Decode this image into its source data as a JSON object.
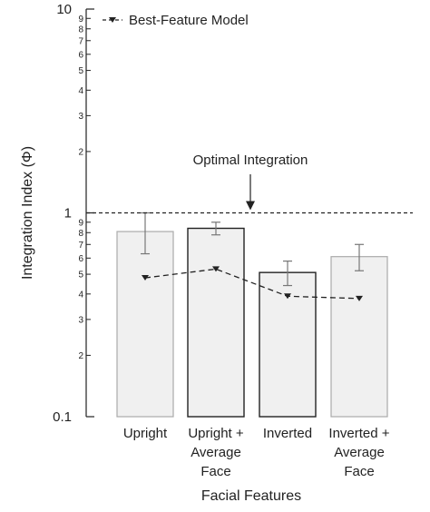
{
  "chart_data": {
    "type": "bar",
    "ylabel": "Integration Index (Φ)",
    "xlabel": "Facial Features",
    "yscale": "log",
    "ylim": [
      0.1,
      10
    ],
    "y_major_ticks": [
      {
        "value": 0.1,
        "label": "0.1"
      },
      {
        "value": 1,
        "label": "1"
      },
      {
        "value": 10,
        "label": "10"
      }
    ],
    "y_minor_ticks": [
      {
        "value": 0.2,
        "label": "2"
      },
      {
        "value": 0.3,
        "label": "3"
      },
      {
        "value": 0.4,
        "label": "4"
      },
      {
        "value": 0.5,
        "label": "5"
      },
      {
        "value": 0.6,
        "label": "6"
      },
      {
        "value": 0.7,
        "label": "7"
      },
      {
        "value": 0.8,
        "label": "8"
      },
      {
        "value": 0.9,
        "label": "9"
      },
      {
        "value": 2,
        "label": "2"
      },
      {
        "value": 3,
        "label": "3"
      },
      {
        "value": 4,
        "label": "4"
      },
      {
        "value": 5,
        "label": "5"
      },
      {
        "value": 6,
        "label": "6"
      },
      {
        "value": 7,
        "label": "7"
      },
      {
        "value": 8,
        "label": "8"
      },
      {
        "value": 9,
        "label": "9"
      }
    ],
    "categories": [
      [
        "Upright"
      ],
      [
        "Upright +",
        "Average",
        "Face"
      ],
      [
        "Inverted"
      ],
      [
        "Inverted +",
        "Average",
        "Face"
      ]
    ],
    "bars": {
      "values": [
        0.81,
        0.84,
        0.51,
        0.61
      ],
      "err_low": [
        0.63,
        0.78,
        0.44,
        0.52
      ],
      "err_high": [
        1.0,
        0.9,
        0.58,
        0.7
      ],
      "outlined": [
        false,
        true,
        true,
        false
      ],
      "fill": "#f0f0f0",
      "edge": "#aaaaaa",
      "edge_dark": "#222222"
    },
    "series": [
      {
        "name": "Best-Feature Model",
        "values": [
          0.48,
          0.53,
          0.39,
          0.38
        ],
        "style": "dashed",
        "marker": "triangle-down",
        "color": "#222222"
      }
    ],
    "reference_line": {
      "value": 1,
      "style": "dashed",
      "label": "Optimal Integration"
    },
    "legend_position": "top-left",
    "grid": false
  }
}
